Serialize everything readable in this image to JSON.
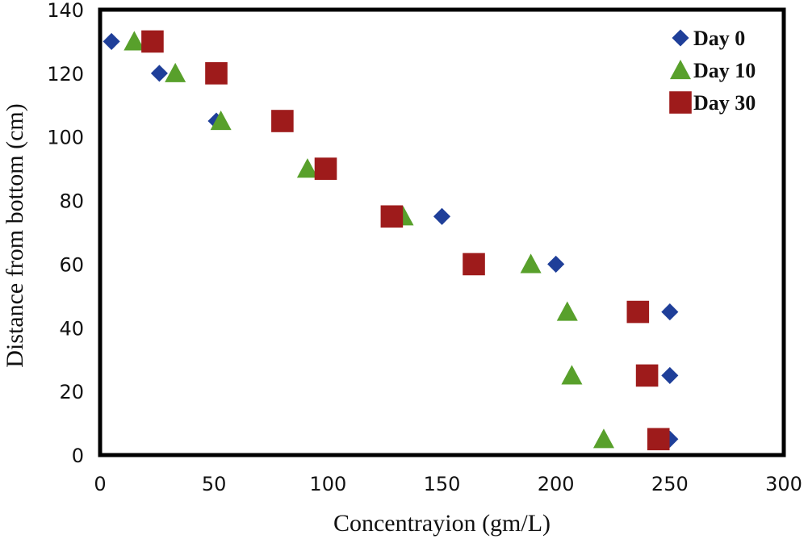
{
  "chart_data": {
    "type": "scatter",
    "xlabel": "Concentrayion (gm/L)",
    "ylabel": "Distance from bottom (cm)",
    "xlim": [
      0,
      300
    ],
    "ylim": [
      0,
      140
    ],
    "x_ticks": [
      0,
      50,
      100,
      150,
      200,
      250,
      300
    ],
    "y_ticks": [
      0,
      20,
      40,
      60,
      80,
      100,
      120,
      140
    ],
    "grid": false,
    "legend_position": "top-right",
    "series": [
      {
        "name": "Day 0",
        "marker": "diamond",
        "color": "#1F3F99",
        "x": [
          5,
          26,
          51,
          100,
          150,
          200,
          250,
          250,
          250
        ],
        "y": [
          130,
          120,
          105,
          90,
          75,
          60,
          45,
          25,
          5
        ]
      },
      {
        "name": "Day 10",
        "marker": "triangle",
        "color": "#58A02B",
        "x": [
          15,
          33,
          53,
          91,
          133,
          189,
          205,
          207,
          221
        ],
        "y": [
          130,
          120,
          105,
          90,
          75,
          60,
          45,
          25,
          5
        ]
      },
      {
        "name": "Day 30",
        "marker": "square",
        "color": "#9E1B1B",
        "x": [
          23,
          51,
          80,
          99,
          128,
          164,
          236,
          240,
          245
        ],
        "y": [
          130,
          120,
          105,
          90,
          75,
          60,
          45,
          25,
          5
        ]
      }
    ]
  }
}
